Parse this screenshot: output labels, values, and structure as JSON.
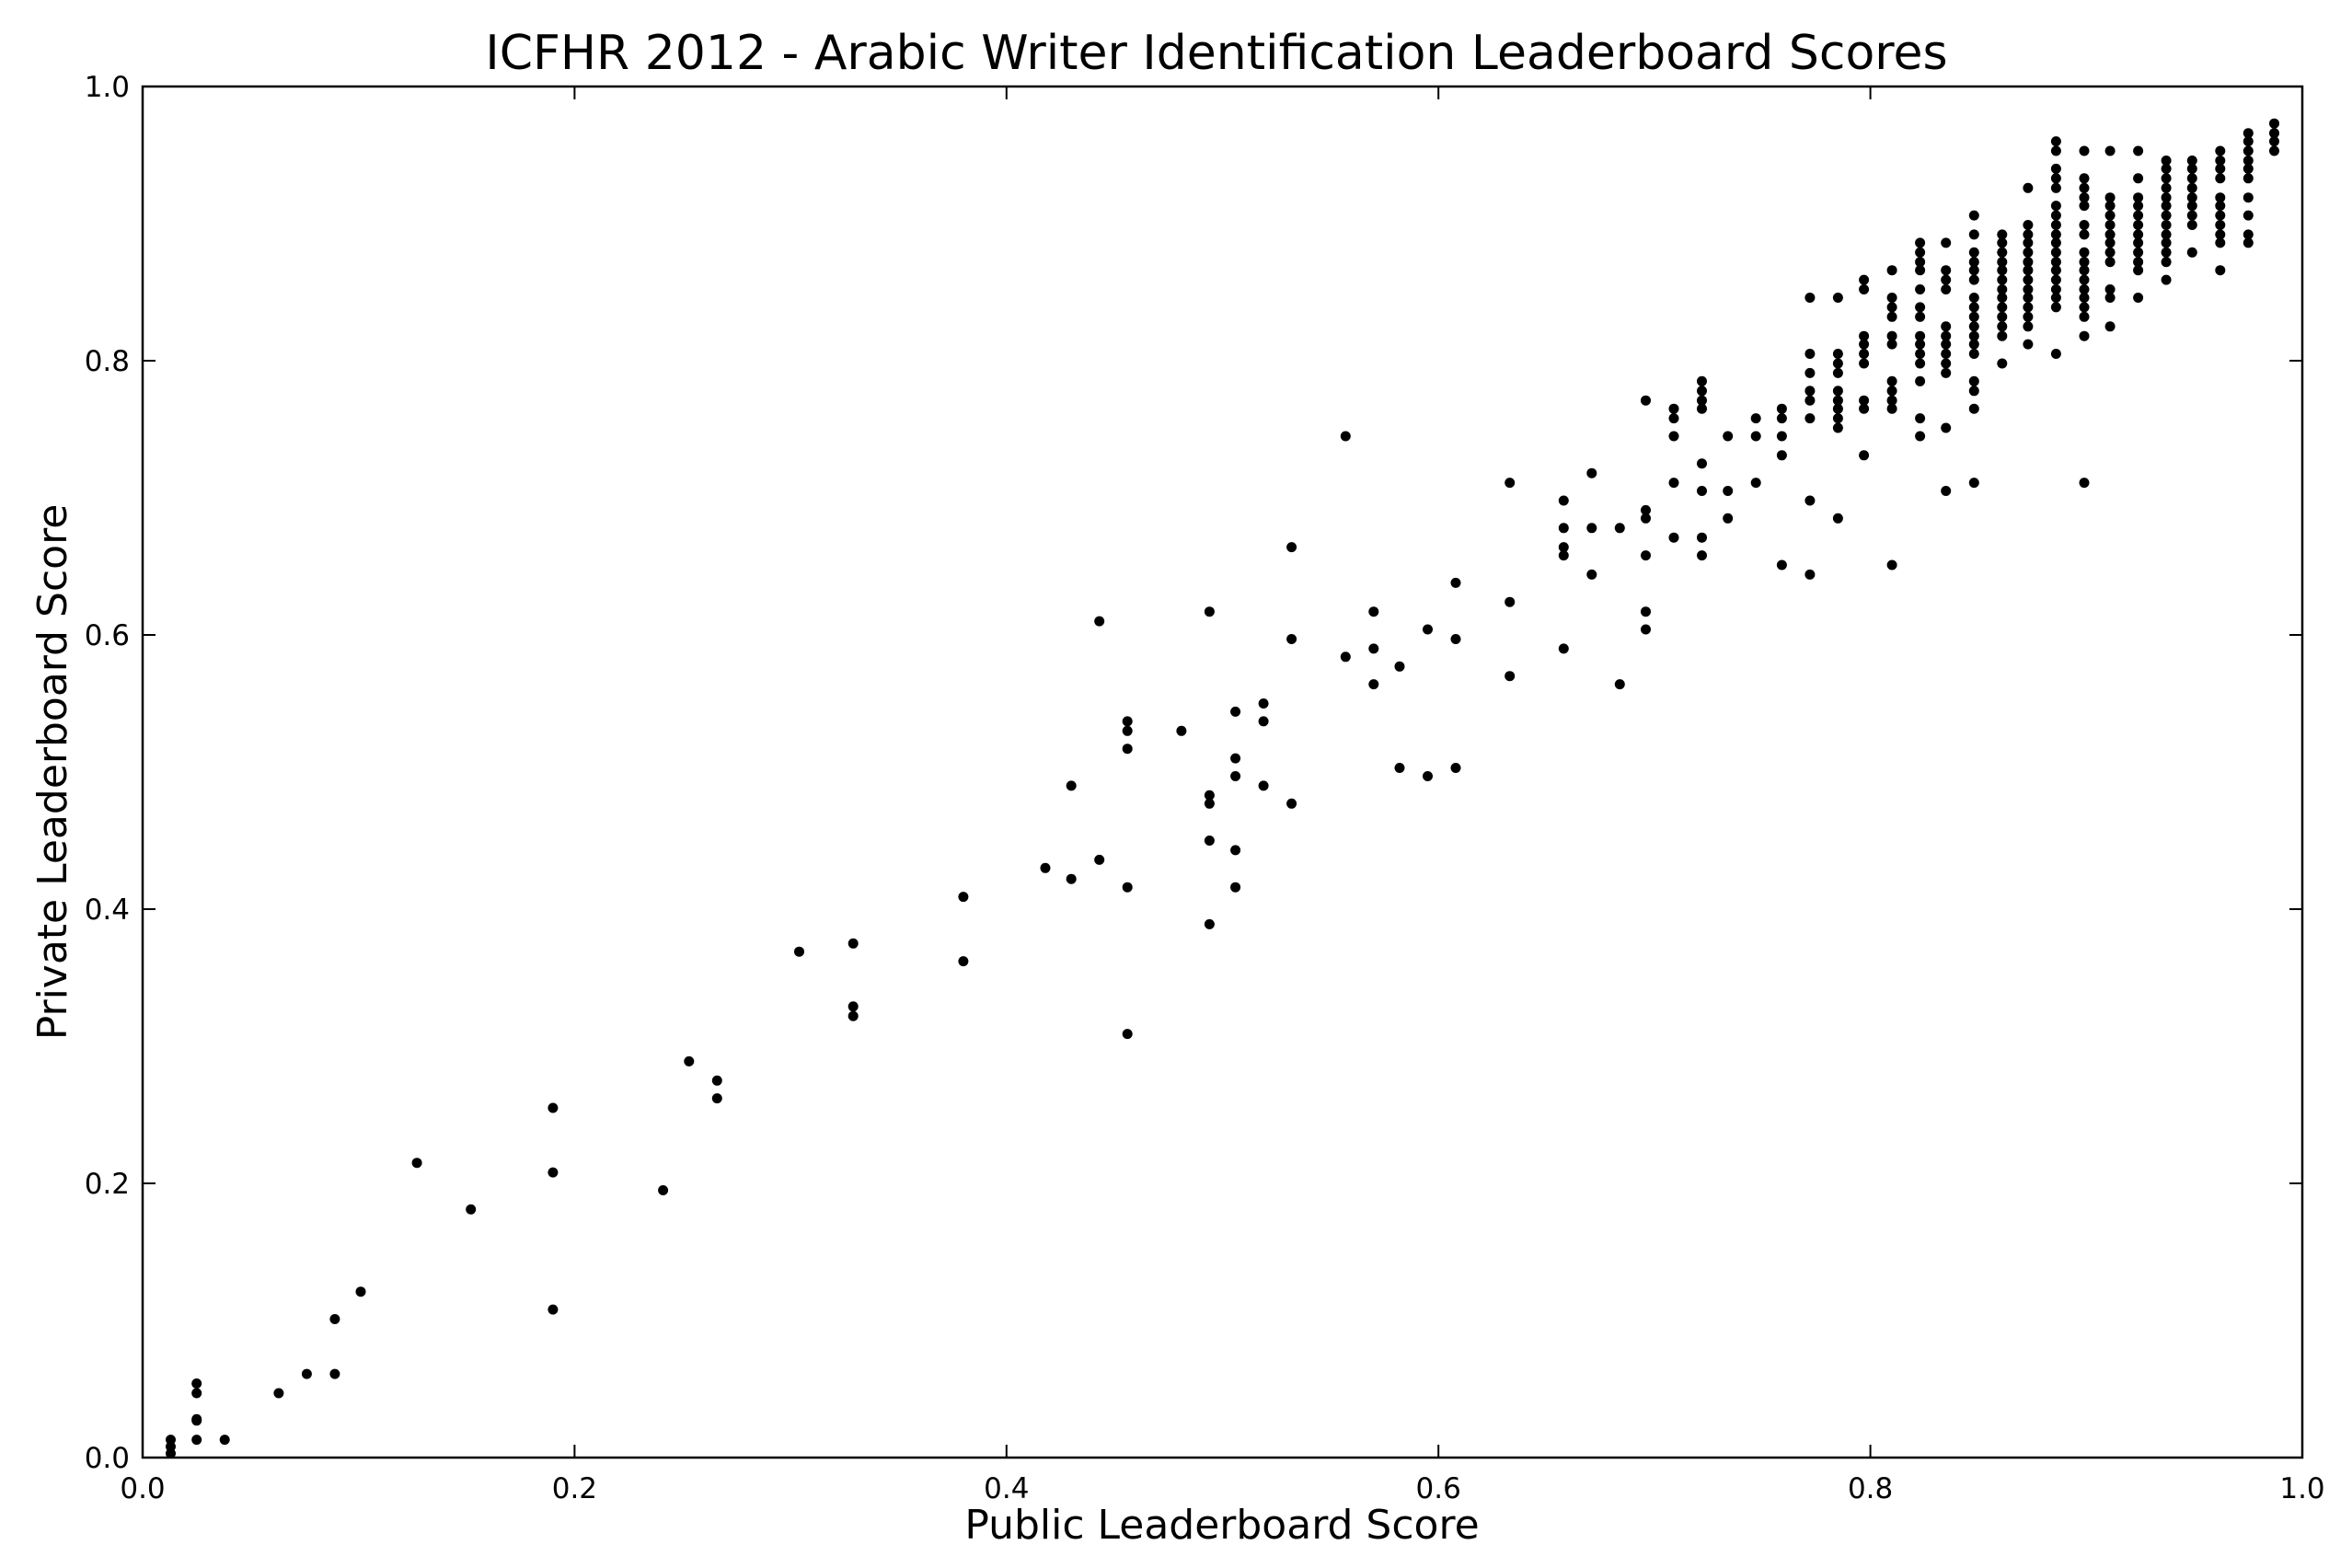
{
  "chart_data": {
    "type": "scatter",
    "title": "ICFHR 2012 - Arabic Writer Identification Leaderboard Scores",
    "xlabel": "Public Leaderboard Score",
    "ylabel": "Private Leaderboard Score",
    "xlim": [
      0.0,
      1.0
    ],
    "ylim": [
      0.0,
      1.0
    ],
    "grid": false,
    "legend": "none",
    "xticks": [
      "0.0",
      "0.2",
      "0.4",
      "0.6",
      "0.8",
      "1.0"
    ],
    "yticks": [
      "0.0",
      "0.2",
      "0.4",
      "0.6",
      "0.8",
      "1.0"
    ],
    "marker_color": "#000000",
    "points": [
      [
        0.013,
        0.003
      ],
      [
        0.013,
        0.008
      ],
      [
        0.013,
        0.013
      ],
      [
        0.025,
        0.013
      ],
      [
        0.025,
        0.027
      ],
      [
        0.025,
        0.028
      ],
      [
        0.025,
        0.047
      ],
      [
        0.025,
        0.054
      ],
      [
        0.038,
        0.013
      ],
      [
        0.063,
        0.047
      ],
      [
        0.076,
        0.061
      ],
      [
        0.089,
        0.061
      ],
      [
        0.089,
        0.101
      ],
      [
        0.101,
        0.121
      ],
      [
        0.127,
        0.215
      ],
      [
        0.152,
        0.181
      ],
      [
        0.19,
        0.108
      ],
      [
        0.19,
        0.208
      ],
      [
        0.19,
        0.255
      ],
      [
        0.241,
        0.195
      ],
      [
        0.253,
        0.289
      ],
      [
        0.266,
        0.262
      ],
      [
        0.266,
        0.275
      ],
      [
        0.304,
        0.369
      ],
      [
        0.329,
        0.322
      ],
      [
        0.329,
        0.329
      ],
      [
        0.329,
        0.375
      ],
      [
        0.38,
        0.362
      ],
      [
        0.38,
        0.409
      ],
      [
        0.418,
        0.43
      ],
      [
        0.43,
        0.422
      ],
      [
        0.43,
        0.49
      ],
      [
        0.443,
        0.436
      ],
      [
        0.443,
        0.61
      ],
      [
        0.456,
        0.309
      ],
      [
        0.456,
        0.416
      ],
      [
        0.456,
        0.517
      ],
      [
        0.456,
        0.53
      ],
      [
        0.456,
        0.537
      ],
      [
        0.481,
        0.53
      ],
      [
        0.494,
        0.389
      ],
      [
        0.494,
        0.45
      ],
      [
        0.494,
        0.477
      ],
      [
        0.494,
        0.483
      ],
      [
        0.494,
        0.617
      ],
      [
        0.506,
        0.416
      ],
      [
        0.506,
        0.443
      ],
      [
        0.506,
        0.497
      ],
      [
        0.506,
        0.51
      ],
      [
        0.506,
        0.544
      ],
      [
        0.519,
        0.49
      ],
      [
        0.519,
        0.537
      ],
      [
        0.519,
        0.55
      ],
      [
        0.532,
        0.477
      ],
      [
        0.532,
        0.597
      ],
      [
        0.532,
        0.664
      ],
      [
        0.557,
        0.584
      ],
      [
        0.557,
        0.745
      ],
      [
        0.57,
        0.564
      ],
      [
        0.57,
        0.59
      ],
      [
        0.57,
        0.617
      ],
      [
        0.582,
        0.503
      ],
      [
        0.582,
        0.577
      ],
      [
        0.595,
        0.497
      ],
      [
        0.595,
        0.604
      ],
      [
        0.608,
        0.503
      ],
      [
        0.608,
        0.597
      ],
      [
        0.608,
        0.638
      ],
      [
        0.633,
        0.57
      ],
      [
        0.633,
        0.624
      ],
      [
        0.633,
        0.711
      ],
      [
        0.658,
        0.59
      ],
      [
        0.658,
        0.658
      ],
      [
        0.658,
        0.664
      ],
      [
        0.658,
        0.678
      ],
      [
        0.658,
        0.698
      ],
      [
        0.671,
        0.644
      ],
      [
        0.671,
        0.678
      ],
      [
        0.671,
        0.718
      ],
      [
        0.684,
        0.564
      ],
      [
        0.684,
        0.678
      ],
      [
        0.696,
        0.604
      ],
      [
        0.696,
        0.617
      ],
      [
        0.696,
        0.658
      ],
      [
        0.696,
        0.685
      ],
      [
        0.696,
        0.691
      ],
      [
        0.696,
        0.771
      ],
      [
        0.709,
        0.671
      ],
      [
        0.709,
        0.711
      ],
      [
        0.709,
        0.745
      ],
      [
        0.709,
        0.758
      ],
      [
        0.709,
        0.765
      ],
      [
        0.722,
        0.658
      ],
      [
        0.722,
        0.671
      ],
      [
        0.722,
        0.705
      ],
      [
        0.722,
        0.725
      ],
      [
        0.722,
        0.765
      ],
      [
        0.722,
        0.771
      ],
      [
        0.722,
        0.778
      ],
      [
        0.722,
        0.785
      ],
      [
        0.734,
        0.685
      ],
      [
        0.734,
        0.705
      ],
      [
        0.734,
        0.745
      ],
      [
        0.747,
        0.711
      ],
      [
        0.747,
        0.745
      ],
      [
        0.747,
        0.758
      ],
      [
        0.759,
        0.651
      ],
      [
        0.759,
        0.731
      ],
      [
        0.759,
        0.745
      ],
      [
        0.759,
        0.758
      ],
      [
        0.759,
        0.765
      ],
      [
        0.772,
        0.644
      ],
      [
        0.772,
        0.698
      ],
      [
        0.772,
        0.758
      ],
      [
        0.772,
        0.771
      ],
      [
        0.772,
        0.778
      ],
      [
        0.772,
        0.791
      ],
      [
        0.772,
        0.805
      ],
      [
        0.772,
        0.846
      ],
      [
        0.785,
        0.685
      ],
      [
        0.785,
        0.751
      ],
      [
        0.785,
        0.758
      ],
      [
        0.785,
        0.765
      ],
      [
        0.785,
        0.771
      ],
      [
        0.785,
        0.778
      ],
      [
        0.785,
        0.791
      ],
      [
        0.785,
        0.798
      ],
      [
        0.785,
        0.805
      ],
      [
        0.785,
        0.846
      ],
      [
        0.797,
        0.731
      ],
      [
        0.797,
        0.765
      ],
      [
        0.797,
        0.771
      ],
      [
        0.797,
        0.798
      ],
      [
        0.797,
        0.805
      ],
      [
        0.797,
        0.812
      ],
      [
        0.797,
        0.818
      ],
      [
        0.797,
        0.852
      ],
      [
        0.797,
        0.859
      ],
      [
        0.81,
        0.651
      ],
      [
        0.81,
        0.765
      ],
      [
        0.81,
        0.771
      ],
      [
        0.81,
        0.778
      ],
      [
        0.81,
        0.785
      ],
      [
        0.81,
        0.812
      ],
      [
        0.81,
        0.818
      ],
      [
        0.81,
        0.832
      ],
      [
        0.81,
        0.839
      ],
      [
        0.81,
        0.846
      ],
      [
        0.81,
        0.866
      ],
      [
        0.823,
        0.745
      ],
      [
        0.823,
        0.758
      ],
      [
        0.823,
        0.785
      ],
      [
        0.823,
        0.798
      ],
      [
        0.823,
        0.805
      ],
      [
        0.823,
        0.812
      ],
      [
        0.823,
        0.818
      ],
      [
        0.823,
        0.832
      ],
      [
        0.823,
        0.839
      ],
      [
        0.823,
        0.852
      ],
      [
        0.823,
        0.866
      ],
      [
        0.823,
        0.872
      ],
      [
        0.823,
        0.879
      ],
      [
        0.823,
        0.886
      ],
      [
        0.835,
        0.705
      ],
      [
        0.835,
        0.751
      ],
      [
        0.835,
        0.791
      ],
      [
        0.835,
        0.798
      ],
      [
        0.835,
        0.805
      ],
      [
        0.835,
        0.812
      ],
      [
        0.835,
        0.818
      ],
      [
        0.835,
        0.825
      ],
      [
        0.835,
        0.852
      ],
      [
        0.835,
        0.859
      ],
      [
        0.835,
        0.866
      ],
      [
        0.835,
        0.886
      ],
      [
        0.848,
        0.711
      ],
      [
        0.848,
        0.765
      ],
      [
        0.848,
        0.778
      ],
      [
        0.848,
        0.785
      ],
      [
        0.848,
        0.805
      ],
      [
        0.848,
        0.812
      ],
      [
        0.848,
        0.818
      ],
      [
        0.848,
        0.825
      ],
      [
        0.848,
        0.832
      ],
      [
        0.848,
        0.839
      ],
      [
        0.848,
        0.846
      ],
      [
        0.848,
        0.859
      ],
      [
        0.848,
        0.866
      ],
      [
        0.848,
        0.872
      ],
      [
        0.848,
        0.879
      ],
      [
        0.848,
        0.892
      ],
      [
        0.848,
        0.906
      ],
      [
        0.861,
        0.798
      ],
      [
        0.861,
        0.818
      ],
      [
        0.861,
        0.825
      ],
      [
        0.861,
        0.832
      ],
      [
        0.861,
        0.839
      ],
      [
        0.861,
        0.846
      ],
      [
        0.861,
        0.852
      ],
      [
        0.861,
        0.859
      ],
      [
        0.861,
        0.866
      ],
      [
        0.861,
        0.872
      ],
      [
        0.861,
        0.879
      ],
      [
        0.861,
        0.886
      ],
      [
        0.861,
        0.892
      ],
      [
        0.873,
        0.812
      ],
      [
        0.873,
        0.825
      ],
      [
        0.873,
        0.832
      ],
      [
        0.873,
        0.839
      ],
      [
        0.873,
        0.846
      ],
      [
        0.873,
        0.852
      ],
      [
        0.873,
        0.859
      ],
      [
        0.873,
        0.866
      ],
      [
        0.873,
        0.872
      ],
      [
        0.873,
        0.879
      ],
      [
        0.873,
        0.886
      ],
      [
        0.873,
        0.892
      ],
      [
        0.873,
        0.899
      ],
      [
        0.873,
        0.926
      ],
      [
        0.886,
        0.805
      ],
      [
        0.886,
        0.839
      ],
      [
        0.886,
        0.846
      ],
      [
        0.886,
        0.852
      ],
      [
        0.886,
        0.859
      ],
      [
        0.886,
        0.866
      ],
      [
        0.886,
        0.872
      ],
      [
        0.886,
        0.879
      ],
      [
        0.886,
        0.886
      ],
      [
        0.886,
        0.892
      ],
      [
        0.886,
        0.899
      ],
      [
        0.886,
        0.906
      ],
      [
        0.886,
        0.913
      ],
      [
        0.886,
        0.926
      ],
      [
        0.886,
        0.933
      ],
      [
        0.886,
        0.94
      ],
      [
        0.886,
        0.953
      ],
      [
        0.886,
        0.96
      ],
      [
        0.899,
        0.711
      ],
      [
        0.899,
        0.818
      ],
      [
        0.899,
        0.832
      ],
      [
        0.899,
        0.839
      ],
      [
        0.899,
        0.846
      ],
      [
        0.899,
        0.852
      ],
      [
        0.899,
        0.859
      ],
      [
        0.899,
        0.866
      ],
      [
        0.899,
        0.872
      ],
      [
        0.899,
        0.879
      ],
      [
        0.899,
        0.892
      ],
      [
        0.899,
        0.899
      ],
      [
        0.899,
        0.913
      ],
      [
        0.899,
        0.919
      ],
      [
        0.899,
        0.926
      ],
      [
        0.899,
        0.933
      ],
      [
        0.899,
        0.953
      ],
      [
        0.911,
        0.825
      ],
      [
        0.911,
        0.846
      ],
      [
        0.911,
        0.852
      ],
      [
        0.911,
        0.872
      ],
      [
        0.911,
        0.879
      ],
      [
        0.911,
        0.886
      ],
      [
        0.911,
        0.892
      ],
      [
        0.911,
        0.899
      ],
      [
        0.911,
        0.906
      ],
      [
        0.911,
        0.913
      ],
      [
        0.911,
        0.919
      ],
      [
        0.911,
        0.953
      ],
      [
        0.924,
        0.846
      ],
      [
        0.924,
        0.866
      ],
      [
        0.924,
        0.872
      ],
      [
        0.924,
        0.879
      ],
      [
        0.924,
        0.886
      ],
      [
        0.924,
        0.892
      ],
      [
        0.924,
        0.899
      ],
      [
        0.924,
        0.906
      ],
      [
        0.924,
        0.913
      ],
      [
        0.924,
        0.919
      ],
      [
        0.924,
        0.933
      ],
      [
        0.924,
        0.953
      ],
      [
        0.937,
        0.859
      ],
      [
        0.937,
        0.872
      ],
      [
        0.937,
        0.879
      ],
      [
        0.937,
        0.886
      ],
      [
        0.937,
        0.892
      ],
      [
        0.937,
        0.899
      ],
      [
        0.937,
        0.906
      ],
      [
        0.937,
        0.913
      ],
      [
        0.937,
        0.919
      ],
      [
        0.937,
        0.926
      ],
      [
        0.937,
        0.933
      ],
      [
        0.937,
        0.94
      ],
      [
        0.937,
        0.946
      ],
      [
        0.949,
        0.879
      ],
      [
        0.949,
        0.899
      ],
      [
        0.949,
        0.906
      ],
      [
        0.949,
        0.913
      ],
      [
        0.949,
        0.919
      ],
      [
        0.949,
        0.926
      ],
      [
        0.949,
        0.933
      ],
      [
        0.949,
        0.94
      ],
      [
        0.949,
        0.946
      ],
      [
        0.962,
        0.866
      ],
      [
        0.962,
        0.886
      ],
      [
        0.962,
        0.892
      ],
      [
        0.962,
        0.899
      ],
      [
        0.962,
        0.906
      ],
      [
        0.962,
        0.913
      ],
      [
        0.962,
        0.919
      ],
      [
        0.962,
        0.933
      ],
      [
        0.962,
        0.94
      ],
      [
        0.962,
        0.946
      ],
      [
        0.962,
        0.953
      ],
      [
        0.975,
        0.886
      ],
      [
        0.975,
        0.892
      ],
      [
        0.975,
        0.906
      ],
      [
        0.975,
        0.919
      ],
      [
        0.975,
        0.933
      ],
      [
        0.975,
        0.94
      ],
      [
        0.975,
        0.946
      ],
      [
        0.975,
        0.953
      ],
      [
        0.975,
        0.96
      ],
      [
        0.975,
        0.966
      ],
      [
        0.987,
        0.953
      ],
      [
        0.987,
        0.96
      ],
      [
        0.987,
        0.966
      ],
      [
        0.987,
        0.973
      ]
    ]
  }
}
